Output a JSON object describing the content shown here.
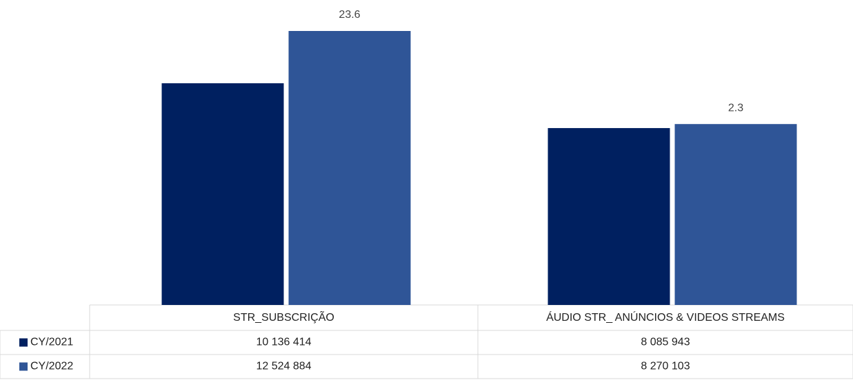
{
  "chart_data": {
    "type": "bar",
    "categories": [
      "STR_SUBSCRIÇÃO",
      "ÁUDIO STR_ ANÚNCIOS & VIDEOS STREAMS"
    ],
    "series": [
      {
        "name": "CY/2021",
        "color": "#002060",
        "values": [
          10136414,
          8085943
        ],
        "value_labels": [
          "10 136 414",
          "8 085 943"
        ]
      },
      {
        "name": "CY/2022",
        "color": "#2f5597",
        "values": [
          12524884,
          8270103
        ],
        "value_labels": [
          "12 524 884",
          "8 270 103"
        ]
      }
    ],
    "annotations": [
      "23.6",
      "2.3"
    ]
  }
}
